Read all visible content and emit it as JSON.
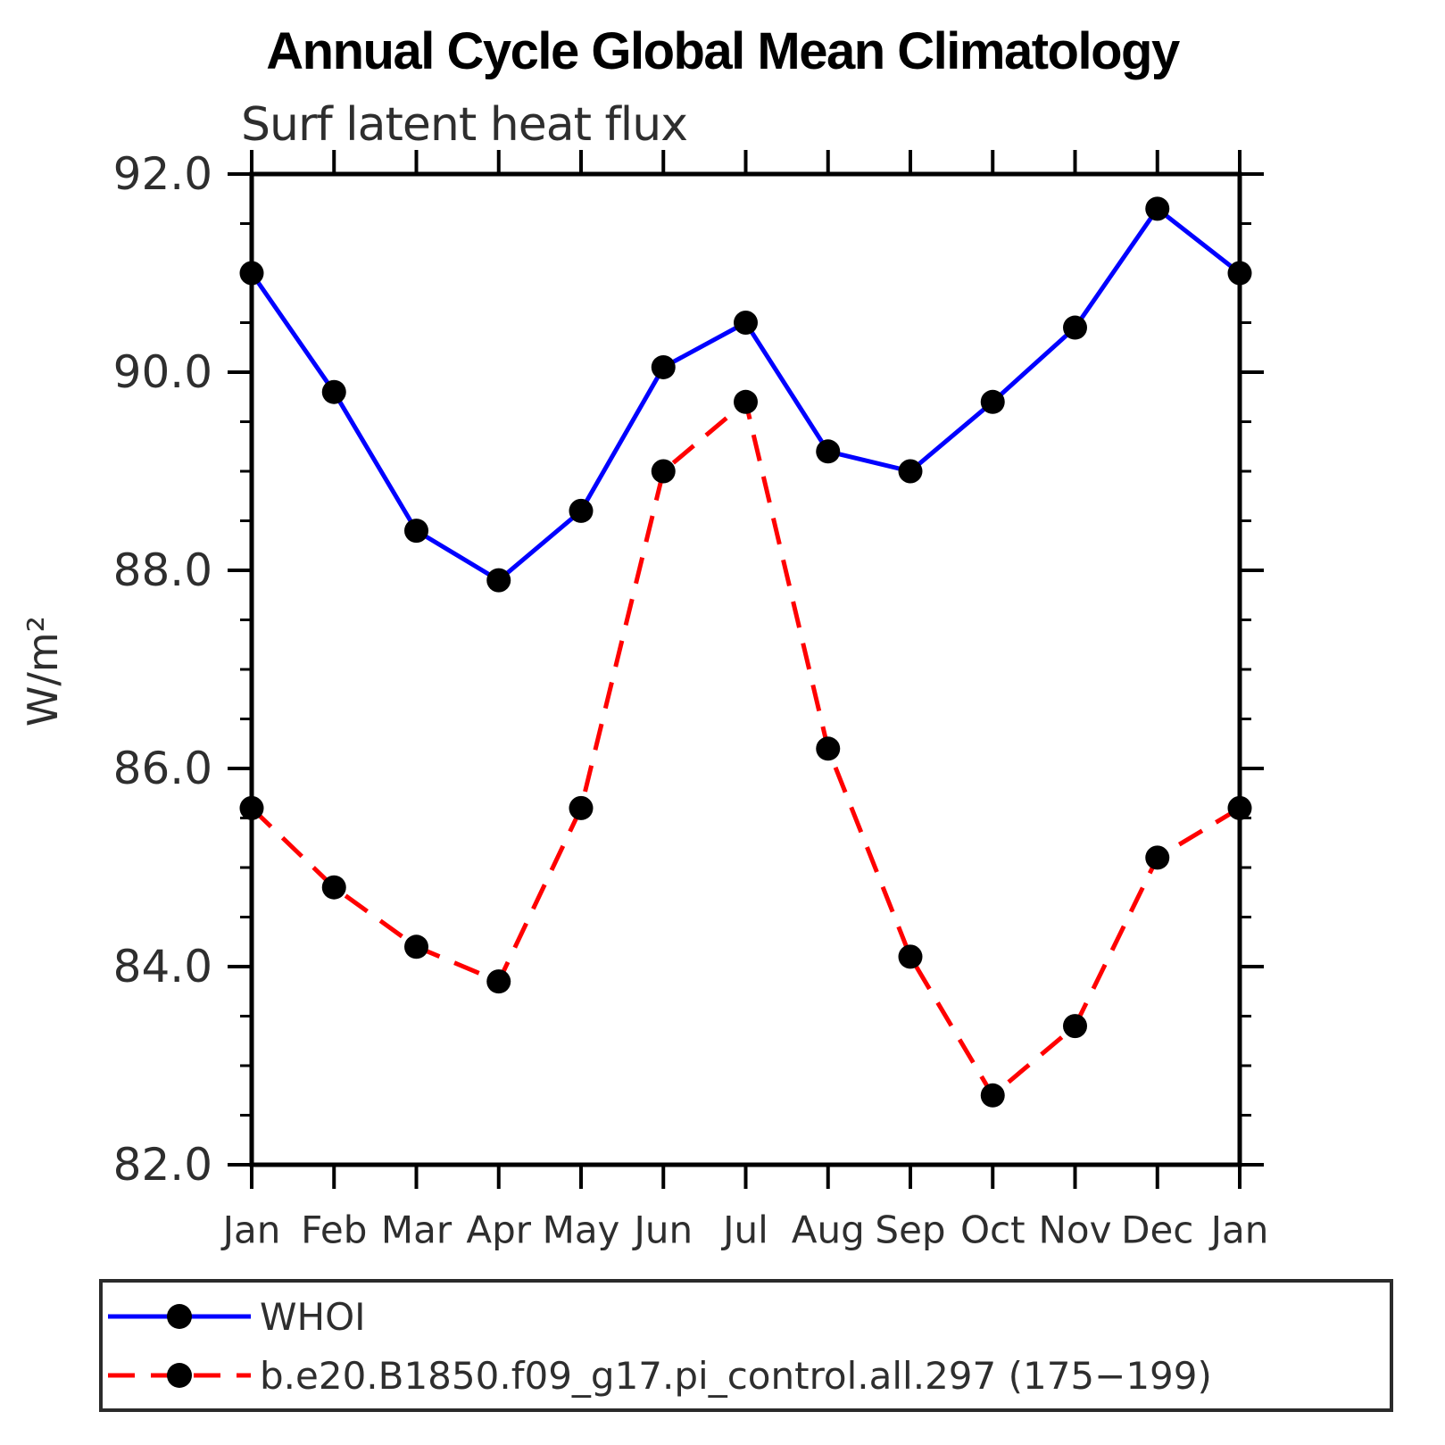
{
  "chart_data": {
    "type": "line",
    "title": "Annual Cycle Global Mean Climatology",
    "subtitle": "Surf latent heat flux",
    "ylabel": "W/m²",
    "xlabel": "",
    "categories": [
      "Jan",
      "Feb",
      "Mar",
      "Apr",
      "May",
      "Jun",
      "Jul",
      "Aug",
      "Sep",
      "Oct",
      "Nov",
      "Dec",
      "Jan"
    ],
    "ylim": [
      82.0,
      92.0
    ],
    "ytick_major": 2.0,
    "ytick_minor": 0.5,
    "yticks": [
      {
        "label": "92.0",
        "value": 92.0
      },
      {
        "label": "90.0",
        "value": 90.0
      },
      {
        "label": "88.0",
        "value": 88.0
      },
      {
        "label": "86.0",
        "value": 86.0
      },
      {
        "label": "84.0",
        "value": 84.0
      },
      {
        "label": "82.0",
        "value": 82.0
      }
    ],
    "grid": false,
    "legend_position": "bottom",
    "axis_color": "#000000",
    "series": [
      {
        "name": "WHOI",
        "color": "#0000ff",
        "style": "solid",
        "marker": "circle",
        "marker_color": "#000000",
        "values": [
          91.0,
          89.8,
          88.4,
          87.9,
          88.6,
          90.05,
          90.5,
          89.2,
          89.0,
          89.7,
          90.45,
          91.65,
          91.0
        ]
      },
      {
        "name": "b.e20.B1850.f09_g17.pi_control.all.297 (175−199)",
        "color": "#ff0000",
        "style": "dashed",
        "marker": "circle",
        "marker_color": "#000000",
        "values": [
          85.6,
          84.8,
          84.2,
          83.85,
          85.6,
          89.0,
          89.7,
          86.2,
          84.1,
          82.7,
          83.4,
          85.1,
          85.6
        ]
      }
    ]
  }
}
